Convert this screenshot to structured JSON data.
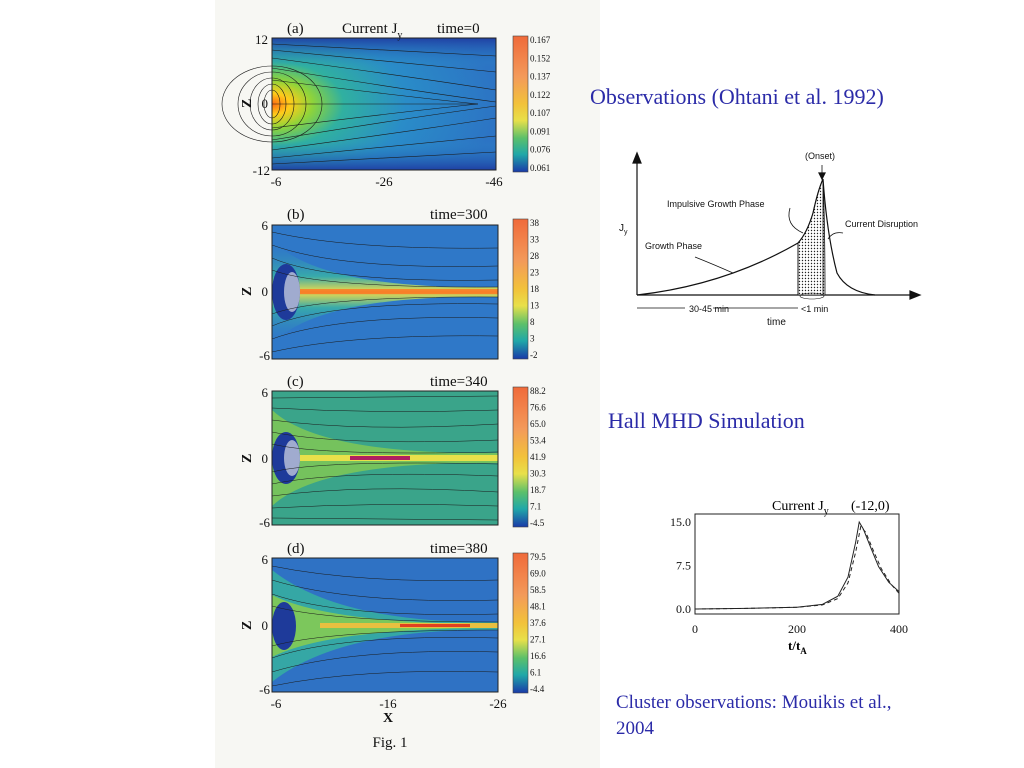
{
  "slide": {
    "observations_title": "Observations (Ohtani et al. 1992)",
    "hall_title": "Hall MHD Simulation",
    "cluster_caption": "Cluster observations: Mouikis et al., 2004"
  },
  "figure": {
    "caption": "Fig. 1",
    "z_label": "Z",
    "x_label": "X",
    "panels": [
      {
        "label": "(a)",
        "title": "Current J",
        "title_sub": "y",
        "time": "time=0",
        "z_ticks": [
          "12",
          "0",
          "-12"
        ],
        "x_ticks": [
          "-6",
          "-26",
          "-46"
        ],
        "colorbar": [
          "0.167",
          "0.152",
          "0.137",
          "0.122",
          "0.107",
          "0.091",
          "0.076",
          "0.061"
        ]
      },
      {
        "label": "(b)",
        "time": "time=300",
        "z_ticks": [
          "6",
          "0",
          "-6"
        ],
        "colorbar": [
          "38",
          "33",
          "28",
          "23",
          "18",
          "13",
          "8",
          "3",
          "-2"
        ]
      },
      {
        "label": "(c)",
        "time": "time=340",
        "z_ticks": [
          "6",
          "0",
          "-6"
        ],
        "colorbar": [
          "88.2",
          "76.6",
          "65.0",
          "53.4",
          "41.9",
          "30.3",
          "18.7",
          "7.1",
          "-4.5"
        ]
      },
      {
        "label": "(d)",
        "time": "time=380",
        "z_ticks": [
          "6",
          "0",
          "-6"
        ],
        "x_ticks": [
          "-6",
          "-16",
          "-26"
        ],
        "colorbar": [
          "79.5",
          "69.0",
          "58.5",
          "48.1",
          "37.6",
          "27.1",
          "16.6",
          "6.1",
          "-4.4"
        ]
      }
    ]
  },
  "ohtani_diagram": {
    "y_label": "J",
    "y_label_sub": "y",
    "onset": "(Onset)",
    "impulsive": "Impulsive Growth Phase",
    "growth": "Growth Phase",
    "disruption": "Current Disruption",
    "dur1": "30-45 min",
    "dur2": "<1 min",
    "time_label": "time"
  },
  "cluster_plot": {
    "title": "Current J",
    "title_sub": "y",
    "position": "(-12,0)",
    "x_label": "t/t",
    "x_label_sub": "A",
    "chart_data": {
      "type": "line",
      "title": "Current Jy",
      "xlabel": "t/tA",
      "xlim": [
        0,
        400
      ],
      "ylim": [
        0,
        15
      ],
      "x_ticks": [
        "0",
        "200",
        "400"
      ],
      "y_ticks": [
        "15.0",
        "7.5",
        "0.0"
      ],
      "series": [
        {
          "style": "solid",
          "x": [
            0,
            100,
            200,
            250,
            280,
            300,
            315,
            322,
            330,
            345,
            360,
            380,
            400
          ],
          "y": [
            0,
            0.1,
            0.3,
            0.8,
            2.2,
            5.5,
            11.5,
            15.0,
            13.8,
            10.5,
            7.3,
            4.6,
            3.0
          ]
        },
        {
          "style": "dashed",
          "x": [
            0,
            100,
            200,
            250,
            280,
            300,
            315,
            325,
            335,
            350,
            365,
            385,
            400
          ],
          "y": [
            0,
            0.1,
            0.3,
            0.7,
            1.8,
            4.5,
            9.8,
            14.2,
            13.2,
            10.0,
            7.0,
            4.2,
            2.7
          ]
        }
      ]
    }
  }
}
